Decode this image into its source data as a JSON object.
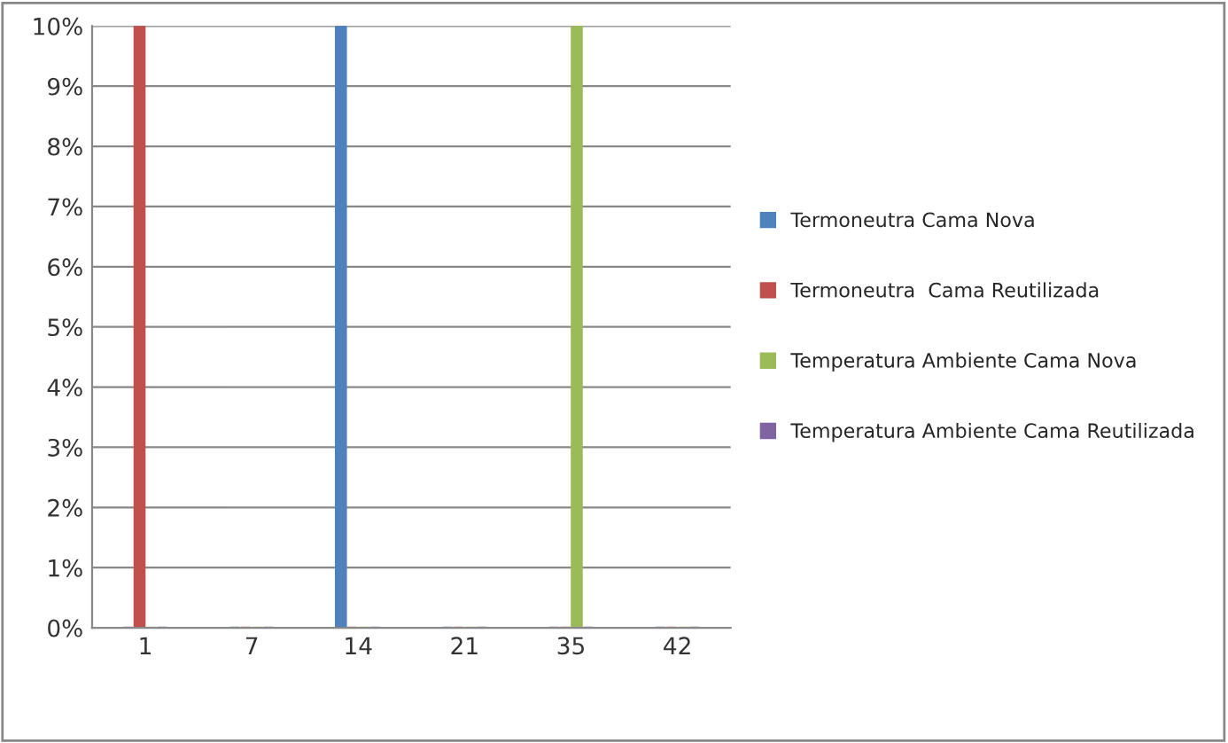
{
  "chart_data": {
    "type": "bar",
    "categories": [
      "1",
      "7",
      "14",
      "21",
      "35",
      "42"
    ],
    "series": [
      {
        "name": "Termoneutra Cama Nova",
        "color": "#4f81bd",
        "values": [
          0,
          0,
          10,
          0,
          0,
          0
        ]
      },
      {
        "name": "Termoneutra  Cama Reutilizada",
        "color": "#c0504d",
        "values": [
          10,
          0,
          0,
          0,
          0,
          0
        ]
      },
      {
        "name": "Temperatura Ambiente Cama Nova",
        "color": "#9bbb59",
        "values": [
          0,
          0,
          0,
          0,
          10,
          0
        ]
      },
      {
        "name": "Temperatura Ambiente Cama Reutilizada",
        "color": "#8064a2",
        "values": [
          0,
          0,
          0,
          0,
          0,
          0
        ]
      }
    ],
    "ylim": [
      0,
      10
    ],
    "yticks": [
      {
        "value": 0,
        "label": "0%"
      },
      {
        "value": 1,
        "label": "1%"
      },
      {
        "value": 2,
        "label": "2%"
      },
      {
        "value": 3,
        "label": "3%"
      },
      {
        "value": 4,
        "label": "4%"
      },
      {
        "value": 5,
        "label": "5%"
      },
      {
        "value": 6,
        "label": "6%"
      },
      {
        "value": 7,
        "label": "7%"
      },
      {
        "value": 8,
        "label": "8%"
      },
      {
        "value": 9,
        "label": "9%"
      },
      {
        "value": 10,
        "label": "10%"
      }
    ],
    "grid": "y",
    "legend": "right"
  }
}
